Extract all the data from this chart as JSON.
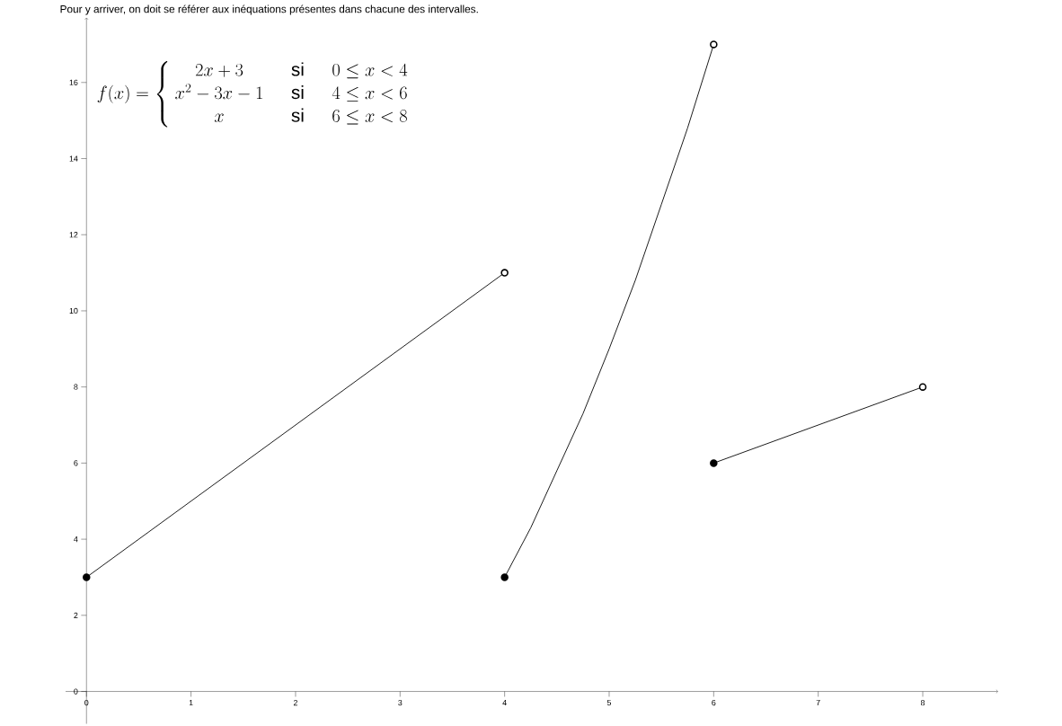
{
  "chart_data": {
    "type": "line",
    "title": "Pour y arriver, on doit se référer aux inéquations présentes dans chacune des intervalles.",
    "annotations": [
      "f(x) = \\left\\{\\begin{array}{ccc} 2x+3 & \\quad\\mathrm{si}\\quad & 0 \\leq x < 4 \\\\ x^{2}-3x-1 & \\quad\\mathrm{si}\\quad & 4 \\leq x < 6 \\\\ x & \\quad\\mathrm{si}\\quad & 6 \\leq x < 8 \\end{array}\\right."
    ],
    "xlim": [
      -0.2,
      8.72
    ],
    "ylim": [
      -0.85,
      17.7
    ],
    "xticks": [
      0,
      1,
      2,
      3,
      4,
      5,
      6,
      7,
      8
    ],
    "yticks": [
      0,
      2,
      4,
      6,
      8,
      10,
      12,
      14,
      16
    ],
    "line_style": "solid",
    "series": [
      {
        "color": "#000000",
        "x": [
          0,
          4
        ],
        "values": [
          3,
          11
        ]
      },
      {
        "color": "#000000",
        "x": [
          4,
          4.25,
          4.5,
          4.75,
          5,
          5.25,
          5.5,
          5.75,
          6
        ],
        "values": [
          3,
          4.3,
          5.8,
          7.3,
          9,
          10.8,
          12.8,
          14.8,
          17
        ]
      },
      {
        "color": "#000000",
        "x": [
          6,
          8
        ],
        "values": [
          6,
          8
        ]
      },
      {
        "type": "scatter",
        "marker": "circle",
        "color": "#000000",
        "x": [
          0,
          4,
          6
        ],
        "values": [
          3,
          3,
          6
        ]
      },
      {
        "type": "scatter",
        "marker": "circle",
        "color": "#ffffff",
        "x": [
          4,
          6,
          8
        ],
        "values": [
          11,
          17,
          8
        ]
      }
    ]
  }
}
